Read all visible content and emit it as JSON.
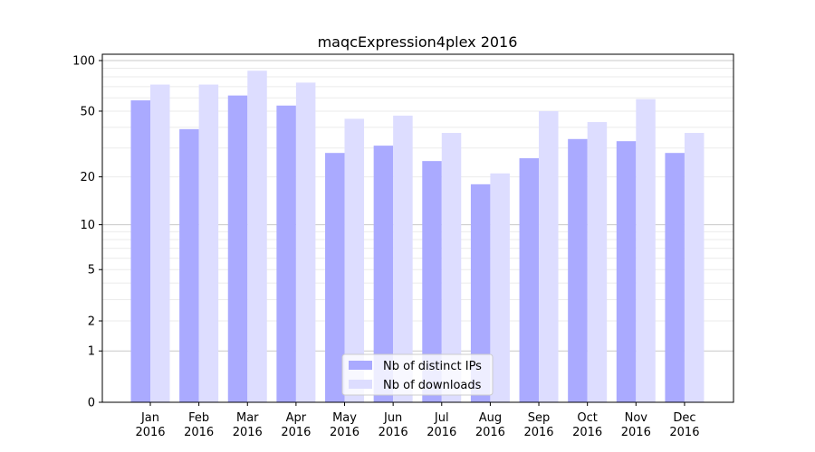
{
  "chart_data": {
    "type": "bar",
    "title": "maqcExpression4plex 2016",
    "xlabel": "",
    "ylabel": "",
    "yscale": "log(1+y)",
    "ylim": [
      0,
      110
    ],
    "grid": true,
    "legend_position": "bottom-center",
    "categories": [
      [
        "Jan",
        "2016"
      ],
      [
        "Feb",
        "2016"
      ],
      [
        "Mar",
        "2016"
      ],
      [
        "Apr",
        "2016"
      ],
      [
        "May",
        "2016"
      ],
      [
        "Jun",
        "2016"
      ],
      [
        "Jul",
        "2016"
      ],
      [
        "Aug",
        "2016"
      ],
      [
        "Sep",
        "2016"
      ],
      [
        "Oct",
        "2016"
      ],
      [
        "Nov",
        "2016"
      ],
      [
        "Dec",
        "2016"
      ]
    ],
    "yticks": [
      0,
      1,
      2,
      5,
      10,
      20,
      50,
      100
    ],
    "series": [
      {
        "name": "Nb of distinct IPs",
        "color": "#aaaaff",
        "values": [
          58,
          39,
          62,
          54,
          28,
          31,
          25,
          18,
          26,
          34,
          33,
          28
        ]
      },
      {
        "name": "Nb of downloads",
        "color": "#ddddff",
        "values": [
          72,
          72,
          87,
          74,
          45,
          47,
          37,
          21,
          50,
          43,
          59,
          37
        ]
      }
    ]
  }
}
